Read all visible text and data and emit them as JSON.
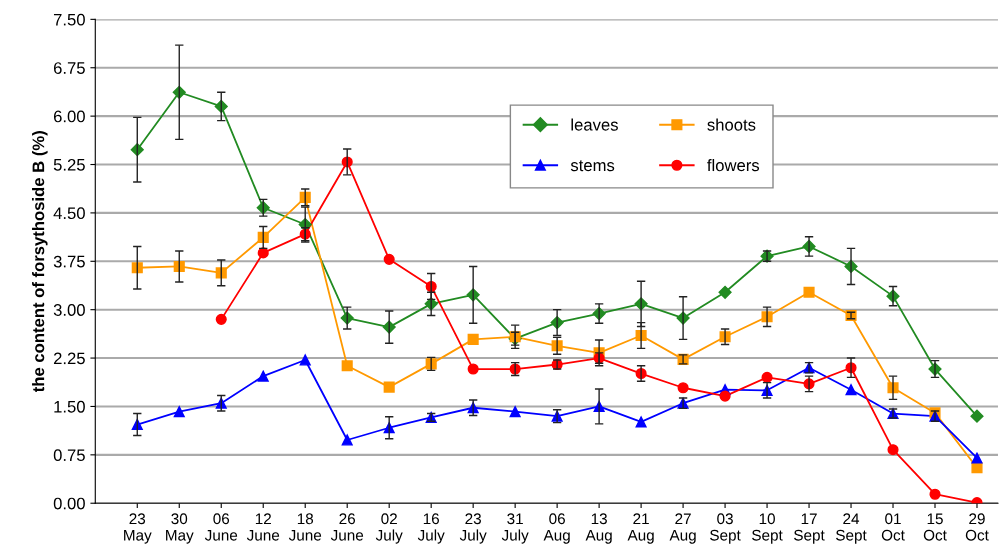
{
  "chart_data": {
    "type": "line",
    "ylabel": "the content of forsythoside B (%)",
    "categories": [
      "23\nMay",
      "30\nMay",
      "06\nJune",
      "12\nJune",
      "18\nJune",
      "26\nJune",
      "02\nJuly",
      "16\nJuly",
      "23\nJuly",
      "31\nJuly",
      "06\nAug",
      "13\nAug",
      "21\nAug",
      "27\nAug",
      "03\nSept",
      "10\nSept",
      "17\nSept",
      "24\nSept",
      "01\nOct",
      "15\nOct",
      "29\nOct"
    ],
    "series": [
      {
        "name": "leaves",
        "color": "#228b22",
        "marker": "diamond",
        "values": [
          5.48,
          6.37,
          6.15,
          4.58,
          4.32,
          2.87,
          2.73,
          3.09,
          3.23,
          2.55,
          2.8,
          2.94,
          3.09,
          2.87,
          3.27,
          3.83,
          3.98,
          3.67,
          3.21,
          2.08,
          1.35
        ],
        "errors": [
          0.5,
          0.73,
          0.22,
          0.13,
          0.27,
          0.17,
          0.25,
          0.18,
          0.44,
          0.1,
          0.2,
          0.15,
          0.35,
          0.33,
          null,
          0.08,
          0.15,
          0.28,
          0.15,
          0.13,
          null
        ]
      },
      {
        "name": "shoots",
        "color": "#ff9900",
        "marker": "square",
        "values": [
          3.65,
          3.67,
          3.57,
          4.12,
          4.74,
          2.13,
          1.8,
          2.16,
          2.54,
          2.58,
          2.44,
          2.33,
          2.6,
          2.23,
          2.58,
          2.89,
          3.27,
          2.91,
          1.79,
          1.4,
          0.55
        ],
        "errors": [
          0.33,
          0.24,
          0.2,
          0.17,
          0.13,
          null,
          null,
          0.1,
          null,
          0.18,
          0.13,
          0.2,
          0.2,
          0.07,
          0.12,
          0.15,
          null,
          0.05,
          0.18,
          null,
          null
        ]
      },
      {
        "name": "stems",
        "color": "#0000ff",
        "marker": "triangle",
        "values": [
          1.22,
          1.42,
          1.55,
          1.97,
          2.22,
          0.98,
          1.17,
          1.33,
          1.48,
          1.42,
          1.35,
          1.5,
          1.26,
          1.55,
          1.76,
          1.75,
          2.1,
          1.76,
          1.39,
          1.35,
          0.7
        ],
        "errors": [
          0.17,
          null,
          0.12,
          null,
          null,
          null,
          0.17,
          0.06,
          0.12,
          null,
          0.1,
          0.27,
          null,
          0.08,
          null,
          0.12,
          0.08,
          null,
          0.07,
          0.08,
          null
        ]
      },
      {
        "name": "flowers",
        "color": "#ff0000",
        "marker": "circle",
        "values": [
          null,
          null,
          2.85,
          3.88,
          4.17,
          5.29,
          3.78,
          3.36,
          2.08,
          2.08,
          2.15,
          2.25,
          2.01,
          1.79,
          1.66,
          1.95,
          1.85,
          2.1,
          0.83,
          0.14,
          0.01
        ],
        "errors": [
          null,
          null,
          null,
          null,
          0.1,
          0.2,
          null,
          0.2,
          null,
          0.1,
          0.07,
          0.08,
          0.12,
          null,
          null,
          null,
          0.12,
          0.15,
          null,
          null,
          null
        ]
      }
    ],
    "ylim": [
      0,
      7.5
    ],
    "yticks": [
      {
        "value": 0,
        "label": "0.00"
      },
      {
        "value": 0.75,
        "label": "0.75"
      },
      {
        "value": 1.5,
        "label": "1.50"
      },
      {
        "value": 2.25,
        "label": "2.25"
      },
      {
        "value": 3,
        "label": "3.00"
      },
      {
        "value": 3.75,
        "label": "3.75"
      },
      {
        "value": 4.5,
        "label": "4.50"
      },
      {
        "value": 5.25,
        "label": "5.25"
      },
      {
        "value": 6,
        "label": "6.00"
      },
      {
        "value": 6.75,
        "label": "6.75"
      },
      {
        "value": 7.5,
        "label": "7.50"
      }
    ],
    "grid": "y",
    "legend": "top right",
    "line_style": "solid"
  }
}
